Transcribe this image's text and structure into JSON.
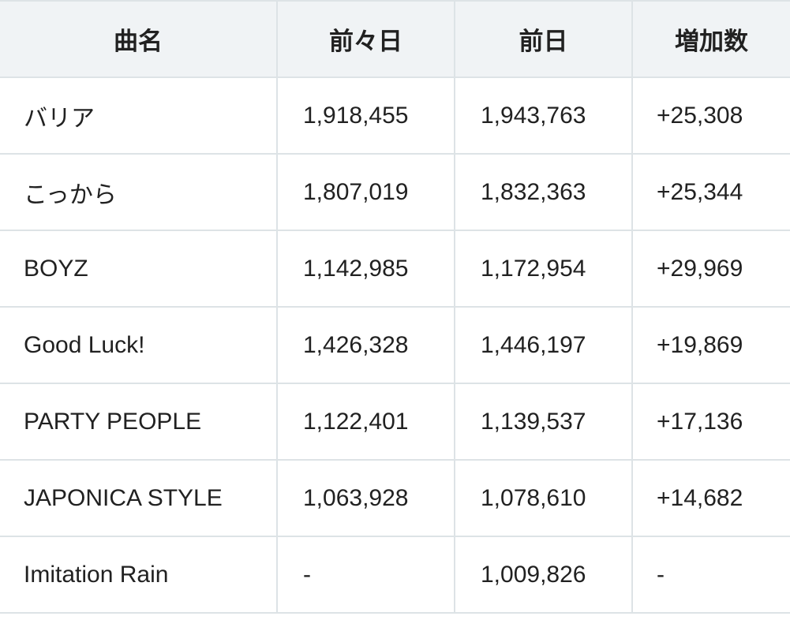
{
  "headers": {
    "song": "曲名",
    "day_before_yesterday": "前々日",
    "yesterday": "前日",
    "increase": "増加数"
  },
  "rows": [
    {
      "song": "バリア",
      "day_before_yesterday": "1,918,455",
      "yesterday": "1,943,763",
      "increase": "+25,308"
    },
    {
      "song": "こっから",
      "day_before_yesterday": "1,807,019",
      "yesterday": "1,832,363",
      "increase": "+25,344"
    },
    {
      "song": "BOYZ",
      "day_before_yesterday": "1,142,985",
      "yesterday": "1,172,954",
      "increase": "+29,969"
    },
    {
      "song": "Good Luck!",
      "day_before_yesterday": "1,426,328",
      "yesterday": "1,446,197",
      "increase": "+19,869"
    },
    {
      "song": "PARTY PEOPLE",
      "day_before_yesterday": "1,122,401",
      "yesterday": "1,139,537",
      "increase": "+17,136"
    },
    {
      "song": "JAPONICA STYLE",
      "day_before_yesterday": "1,063,928",
      "yesterday": "1,078,610",
      "increase": "+14,682"
    },
    {
      "song": "Imitation Rain",
      "day_before_yesterday": "-",
      "yesterday": "1,009,826",
      "increase": "-"
    }
  ]
}
